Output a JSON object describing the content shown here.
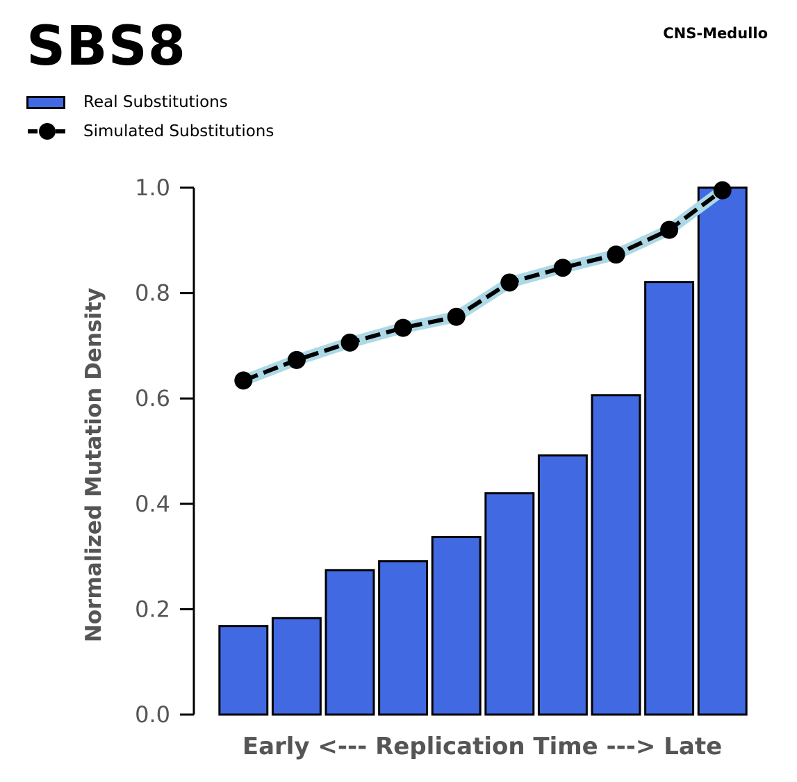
{
  "title": "SBS8",
  "subtitle": "CNS-Medullo",
  "legend": {
    "bar_label": "Real Substitutions",
    "line_label": "Simulated Substitutions"
  },
  "colors": {
    "bar_fill": "#4169e1",
    "bar_edge": "#000000",
    "line": "#000000",
    "line_halo": "#add8e6",
    "axis_text": "#555555"
  },
  "chart_data": {
    "type": "bar",
    "xlabel": "Early <--- Replication Time ---> Late",
    "ylabel": "Normalized Mutation Density",
    "ylim": [
      0,
      1.0
    ],
    "yticks": [
      "0.0",
      "0.2",
      "0.4",
      "0.6",
      "0.8",
      "1.0"
    ],
    "legend_position": "top-left",
    "grid": false,
    "series": [
      {
        "name": "Real Substitutions",
        "type": "bar",
        "values": [
          0.168,
          0.183,
          0.274,
          0.291,
          0.337,
          0.42,
          0.492,
          0.606,
          0.821,
          1.0
        ]
      },
      {
        "name": "Simulated Substitutions",
        "type": "line",
        "values": [
          0.634,
          0.673,
          0.706,
          0.734,
          0.755,
          0.82,
          0.848,
          0.873,
          0.92,
          0.995
        ]
      }
    ]
  }
}
